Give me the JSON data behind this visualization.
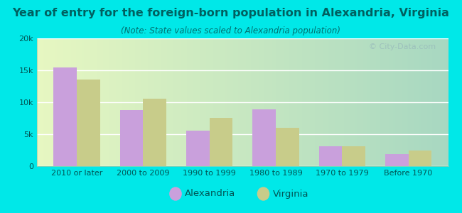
{
  "title": "Year of entry for the foreign-born population in Alexandria, Virginia",
  "subtitle": "(Note: State values scaled to Alexandria population)",
  "categories": [
    "2010 or later",
    "2000 to 2009",
    "1990 to 1999",
    "1980 to 1989",
    "1970 to 1979",
    "Before 1970"
  ],
  "alexandria_values": [
    15500,
    8800,
    5600,
    8900,
    3100,
    1900
  ],
  "virginia_values": [
    13600,
    10600,
    7600,
    6000,
    3100,
    2500
  ],
  "alexandria_color": "#c9a0dc",
  "virginia_color": "#c8cc8a",
  "bg_outer": "#00e8e8",
  "bg_plot": "#e6f5e6",
  "ylim": [
    0,
    20000
  ],
  "yticks": [
    0,
    5000,
    10000,
    15000,
    20000
  ],
  "ytick_labels": [
    "0",
    "5k",
    "10k",
    "15k",
    "20k"
  ],
  "watermark": "© City-Data.com",
  "legend_labels": [
    "Alexandria",
    "Virginia"
  ],
  "bar_width": 0.35,
  "title_fontsize": 11.5,
  "subtitle_fontsize": 8.5,
  "tick_fontsize": 8,
  "legend_fontsize": 9.5,
  "title_color": "#006060",
  "subtitle_color": "#007070",
  "tick_color": "#005555"
}
